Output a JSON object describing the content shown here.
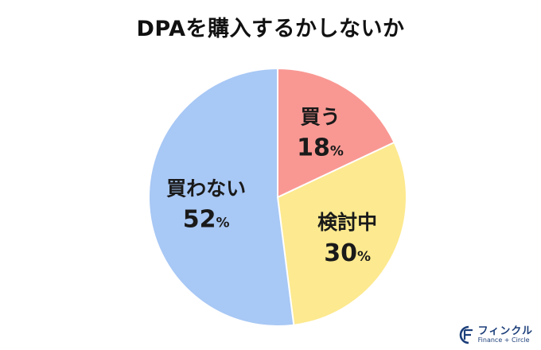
{
  "chart_data": {
    "type": "pie",
    "title": "DPAを購入するかしないか",
    "slices": [
      {
        "label": "買う",
        "value": 18,
        "color": "#f99893"
      },
      {
        "label": "検討中",
        "value": 30,
        "color": "#fde98f"
      },
      {
        "label": "買わない",
        "value": 52,
        "color": "#a8c8f5"
      }
    ],
    "value_suffix": "%",
    "start_angle_deg": 0,
    "direction": "clockwise"
  },
  "brand": {
    "name": "フィンクル",
    "subtitle": "Finance + Circle",
    "logo_icon": "fincle-logo-icon",
    "color": "#1c3f7a"
  }
}
